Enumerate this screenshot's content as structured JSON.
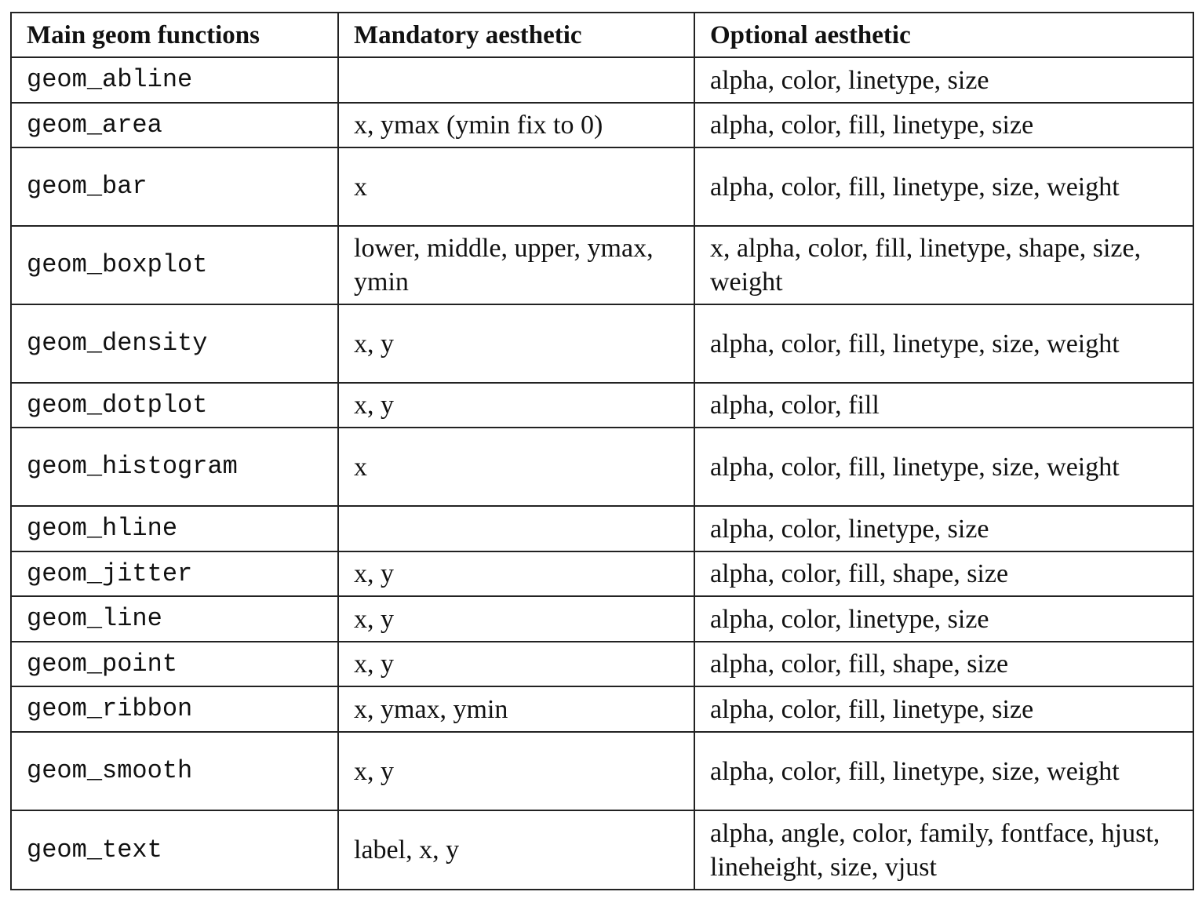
{
  "table": {
    "headers": [
      "Main geom functions",
      "Mandatory aesthetic",
      "Optional aesthetic"
    ],
    "rows": [
      {
        "fn": "geom_abline",
        "mandatory": "",
        "optional": "alpha, color, linetype, size"
      },
      {
        "fn": "geom_area",
        "mandatory": "x, ymax (ymin fix to 0)",
        "optional": "alpha, color, fill, linetype, size"
      },
      {
        "fn": "geom_bar",
        "mandatory": "x",
        "optional": "alpha, color, fill, linetype, size, weight"
      },
      {
        "fn": "geom_boxplot",
        "mandatory": "lower, middle, upper, ymax, ymin",
        "optional": "x, alpha, color, fill, linetype, shape, size, weight"
      },
      {
        "fn": "geom_density",
        "mandatory": "x, y",
        "optional": "alpha, color, fill, linetype, size, weight"
      },
      {
        "fn": "geom_dotplot",
        "mandatory": "x, y",
        "optional": "alpha, color, fill"
      },
      {
        "fn": "geom_histogram",
        "mandatory": "x",
        "optional": "alpha, color, fill, linetype, size, weight"
      },
      {
        "fn": "geom_hline",
        "mandatory": "",
        "optional": "alpha, color, linetype, size"
      },
      {
        "fn": "geom_jitter",
        "mandatory": "x, y",
        "optional": "alpha, color, fill, shape, size"
      },
      {
        "fn": "geom_line",
        "mandatory": "x, y",
        "optional": "alpha, color, linetype, size"
      },
      {
        "fn": "geom_point",
        "mandatory": "x, y",
        "optional": "alpha, color, fill, shape, size"
      },
      {
        "fn": "geom_ribbon",
        "mandatory": "x, ymax, ymin",
        "optional": "alpha, color, fill, linetype, size"
      },
      {
        "fn": "geom_smooth",
        "mandatory": "x, y",
        "optional": "alpha, color, fill, linetype, size, weight"
      },
      {
        "fn": "geom_text",
        "mandatory": "label, x, y",
        "optional": "alpha, angle, color, family, fontface, hjust, lineheight, size, vjust"
      }
    ]
  }
}
